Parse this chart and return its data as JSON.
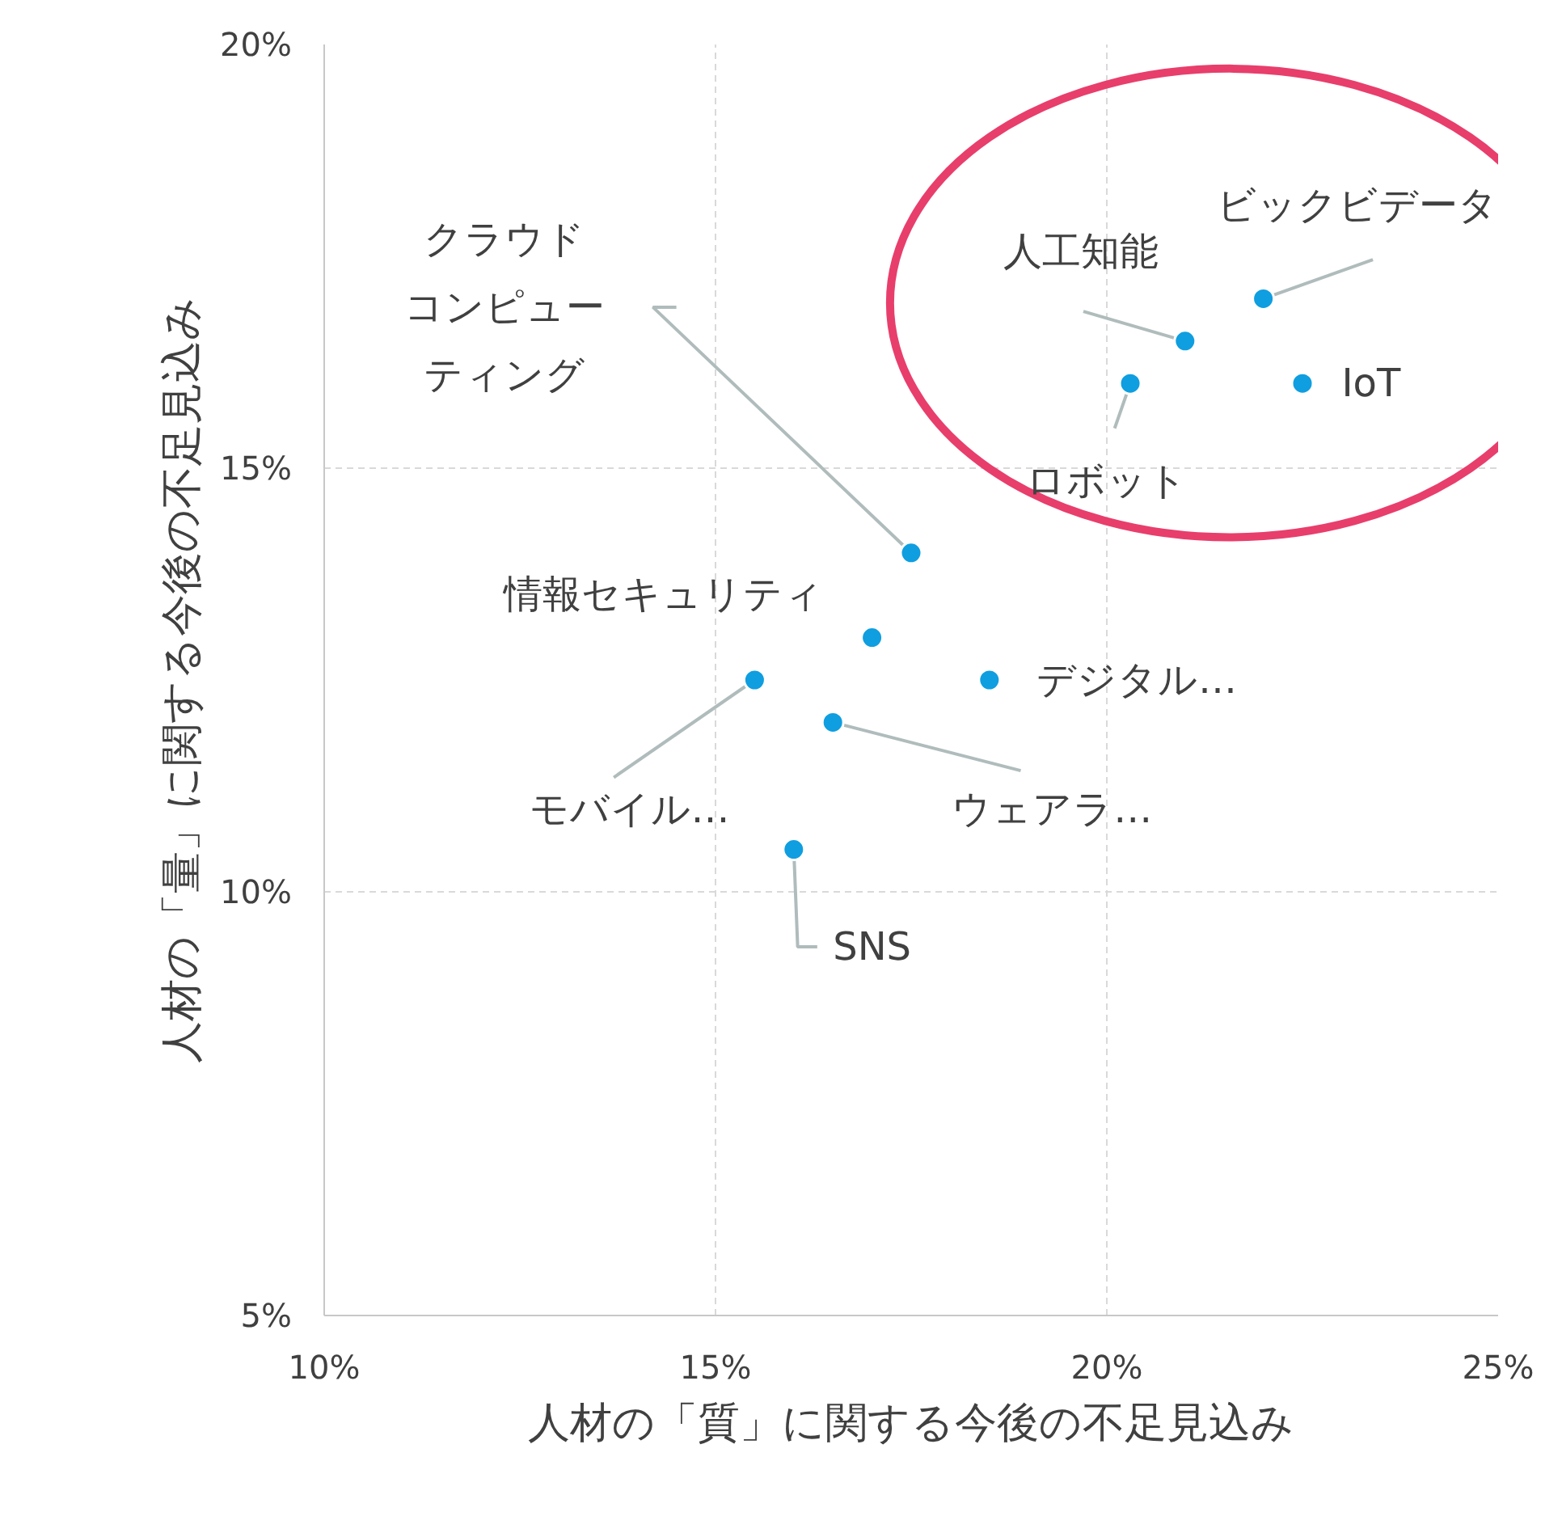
{
  "chart_data": {
    "type": "scatter",
    "xlabel": "人材の「質」に関する今後の不足見込み",
    "ylabel": "人材の「量」に関する今後の不足見込み",
    "x": [
      17.5,
      22.0,
      21.0,
      22.5,
      20.3,
      17.0,
      18.5,
      15.5,
      16.5,
      16.0
    ],
    "series": [
      {
        "color": "#0f9ee0",
        "values": [
          14.0,
          17.0,
          16.5,
          16.0,
          16.0,
          13.0,
          12.5,
          12.5,
          12.0,
          10.5
        ]
      }
    ],
    "annotations": [
      {
        "text": "クラウドコンピューティング",
        "x": 17.5,
        "y": 14.0
      },
      {
        "text": "ビックビデータ",
        "x": 22.0,
        "y": 17.0
      },
      {
        "text": "人工知能",
        "x": 21.0,
        "y": 16.5
      },
      {
        "text": "IoT",
        "x": 22.5,
        "y": 16.0
      },
      {
        "text": "ロボット",
        "x": 20.3,
        "y": 16.0
      },
      {
        "text": "情報セキュリティ",
        "x": 17.0,
        "y": 13.0
      },
      {
        "text": "デジタル…",
        "x": 18.5,
        "y": 12.5
      },
      {
        "text": "モバイル…",
        "x": 15.5,
        "y": 12.5
      },
      {
        "text": "ウェアラ…",
        "x": 16.5,
        "y": 12.0
      },
      {
        "text": "SNS",
        "x": 16.0,
        "y": 10.5
      }
    ],
    "xlim": [
      10,
      25
    ],
    "ylim": [
      5,
      20
    ],
    "xticks": [
      {
        "value": 10,
        "label": "10%"
      },
      {
        "value": 15,
        "label": "15%"
      },
      {
        "value": 20,
        "label": "20%"
      },
      {
        "value": 25,
        "label": "25%"
      }
    ],
    "yticks": [
      {
        "value": 5,
        "label": "5%"
      },
      {
        "value": 10,
        "label": "10%"
      },
      {
        "value": 15,
        "label": "15%"
      },
      {
        "value": 20,
        "label": "20%"
      }
    ],
    "grid": true,
    "marker": "circle"
  }
}
